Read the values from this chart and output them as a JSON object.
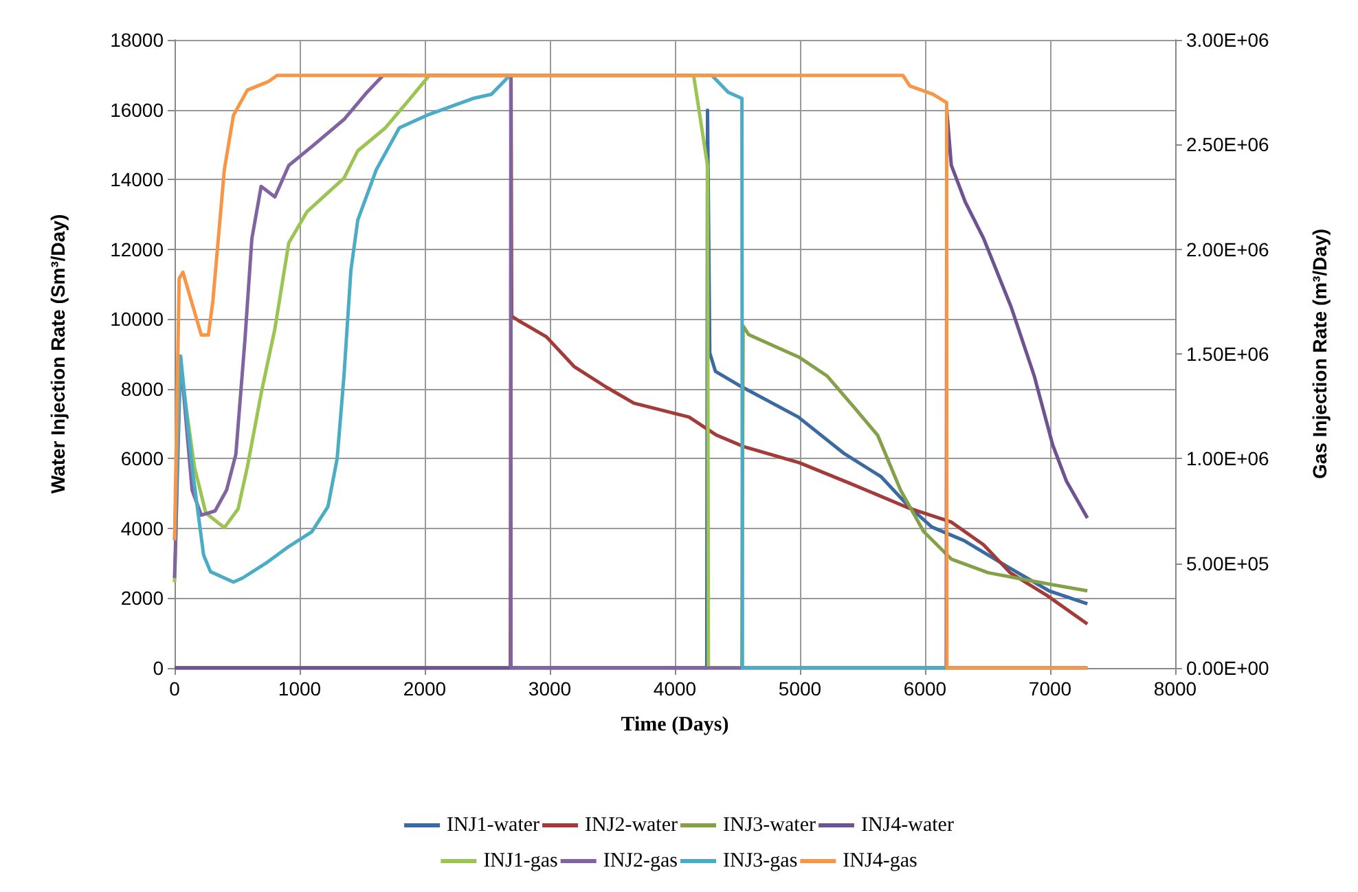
{
  "chart_data": {
    "type": "line",
    "xlabel": "Time (Days)",
    "ylabel": "Water Injection Rate (Sm³/Day)",
    "y2label": "Gas Injection Rate (m³/Day)",
    "xlim": [
      0,
      8000
    ],
    "xticks": [
      0,
      1000,
      2000,
      3000,
      4000,
      5000,
      6000,
      7000,
      8000
    ],
    "ylim": [
      0,
      18000
    ],
    "yticks": [
      0,
      2000,
      4000,
      6000,
      8000,
      10000,
      12000,
      14000,
      16000,
      18000
    ],
    "y2lim": [
      0,
      3000000
    ],
    "y2ticks": [
      {
        "value": 0,
        "label": "0.00E+00"
      },
      {
        "value": 500000,
        "label": "5.00E+05"
      },
      {
        "value": 1000000,
        "label": "1.00E+06"
      },
      {
        "value": 1500000,
        "label": "1.50E+06"
      },
      {
        "value": 2000000,
        "label": "2.00E+06"
      },
      {
        "value": 2500000,
        "label": "2.50E+06"
      },
      {
        "value": 3000000,
        "label": "3.00E+06"
      }
    ],
    "grid": true,
    "legend": "bottom",
    "series": [
      {
        "name": "INJ1-water",
        "color": "#3b6aa3",
        "x": [
          0,
          4255,
          4261,
          4265,
          4279,
          4324,
          4508,
          4987,
          5355,
          5649,
          5870,
          6054,
          6312,
          6680,
          6992,
          7298
        ],
        "values": [
          0,
          0,
          15980,
          14470,
          9030,
          8500,
          8110,
          7190,
          6140,
          5480,
          4630,
          4040,
          3650,
          2860,
          2210,
          1840
        ]
      },
      {
        "name": "INJ2-water",
        "color": "#a33b38",
        "x": [
          0,
          2685,
          2690,
          2695,
          2752,
          2973,
          3194,
          3451,
          3672,
          4113,
          4334,
          4554,
          4996,
          5400,
          5879,
          6210,
          6468,
          6680,
          6974,
          7298
        ],
        "values": [
          0,
          0,
          16900,
          10080,
          9950,
          9490,
          8640,
          8050,
          7590,
          7190,
          6670,
          6340,
          5880,
          5290,
          4570,
          4180,
          3530,
          2730,
          2080,
          1260
        ]
      },
      {
        "name": "INJ3-water",
        "color": "#84a14a",
        "x": [
          0,
          4536,
          4545,
          4554,
          4591,
          4996,
          5216,
          5437,
          5621,
          5805,
          5989,
          6210,
          6505,
          6873,
          7298
        ],
        "values": [
          0,
          0,
          9800,
          9750,
          9550,
          8900,
          8370,
          7450,
          6670,
          5090,
          3910,
          3120,
          2730,
          2480,
          2210
        ]
      },
      {
        "name": "INJ4-water",
        "color": "#6e5392",
        "x": [
          0,
          6170,
          6174,
          6210,
          6321,
          6468,
          6689,
          6873,
          7020,
          7131,
          7298
        ],
        "values": [
          0,
          0,
          15980,
          14410,
          13360,
          12310,
          10340,
          8370,
          6400,
          5350,
          4300
        ]
      },
      {
        "name": "INJ1-gas",
        "color": "#9bc453",
        "axis": "y2",
        "x": [
          0,
          10,
          37,
          159,
          250,
          398,
          508,
          582,
          692,
          802,
          913,
          1060,
          1355,
          1465,
          1686,
          1870,
          2036,
          4150,
          4261,
          4268,
          7298
        ],
        "values": [
          410000,
          600000,
          1480000,
          960000,
          740000,
          670000,
          760000,
          960000,
          1310000,
          1620000,
          2030000,
          2180000,
          2340000,
          2470000,
          2580000,
          2710000,
          2830000,
          2830000,
          2400000,
          0,
          0
        ]
      },
      {
        "name": "INJ2-gas",
        "color": "#8064a2",
        "axis": "y2",
        "x": [
          0,
          48,
          140,
          214,
          324,
          416,
          490,
          563,
          618,
          692,
          802,
          913,
          1097,
          1355,
          1539,
          1667,
          2688,
          2690,
          7298
        ],
        "values": [
          430000,
          1480000,
          850000,
          730000,
          750000,
          850000,
          1020000,
          1570000,
          2050000,
          2300000,
          2250000,
          2400000,
          2490000,
          2620000,
          2750000,
          2830000,
          2830000,
          0,
          0
        ]
      },
      {
        "name": "INJ3-gas",
        "color": "#4bacc6",
        "axis": "y2",
        "x": [
          0,
          48,
          140,
          232,
          287,
          471,
          545,
          729,
          913,
          1097,
          1226,
          1300,
          1355,
          1410,
          1465,
          1613,
          1797,
          2018,
          2386,
          2533,
          2680,
          4296,
          4426,
          4536,
          4540,
          7298
        ],
        "values": [
          610000,
          1490000,
          960000,
          540000,
          460000,
          410000,
          430000,
          500000,
          580000,
          650000,
          770000,
          1000000,
          1400000,
          1900000,
          2140000,
          2380000,
          2580000,
          2640000,
          2720000,
          2740000,
          2830000,
          2830000,
          2750000,
          2720000,
          0,
          0
        ]
      },
      {
        "name": "INJ4-gas",
        "color": "#f79646",
        "axis": "y2",
        "x": [
          0,
          37,
          67,
          214,
          270,
          306,
          398,
          471,
          582,
          748,
          820,
          5824,
          5879,
          6063,
          6173,
          6175,
          7298
        ],
        "values": [
          610000,
          1860000,
          1890000,
          1590000,
          1590000,
          1750000,
          2380000,
          2640000,
          2760000,
          2800000,
          2830000,
          2830000,
          2780000,
          2740000,
          2700000,
          0,
          0
        ]
      }
    ]
  }
}
